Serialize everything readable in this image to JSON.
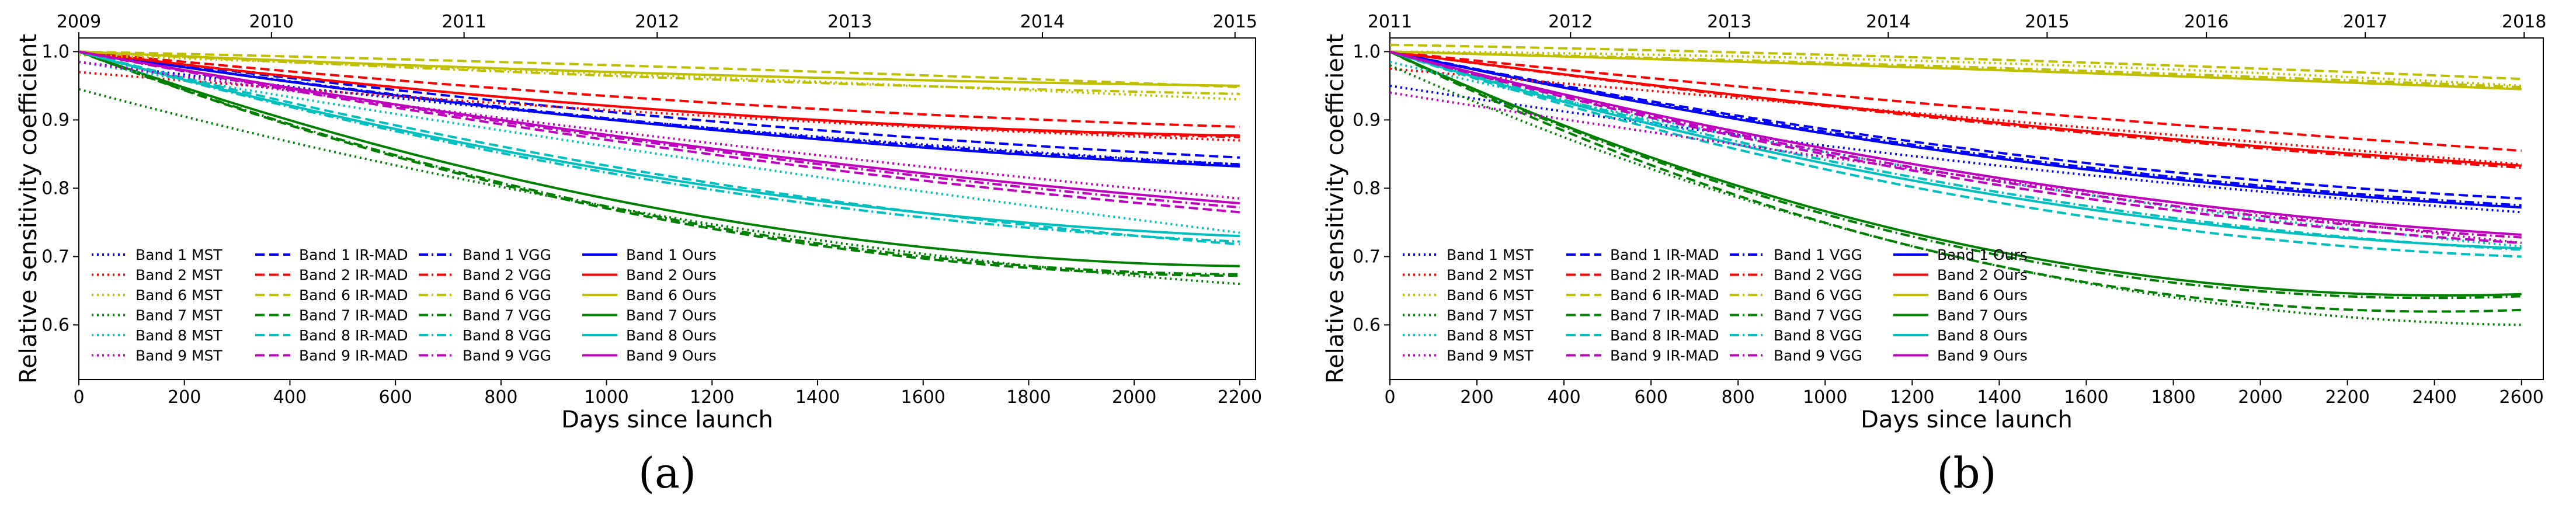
{
  "chart_data": [
    {
      "panel_label": "(a)",
      "panel_letter": "a",
      "type": "line",
      "xlabel": "Days since launch",
      "ylabel": "Relative sensitivity coefficient",
      "xlim": [
        0,
        2230
      ],
      "ylim": [
        0.52,
        1.02
      ],
      "xticks": [
        0,
        200,
        400,
        600,
        800,
        1000,
        1200,
        1400,
        1600,
        1800,
        2000,
        2200
      ],
      "yticks": [
        0.6,
        0.7,
        0.8,
        0.9,
        1.0
      ],
      "ytick_labels": [
        "0.6",
        "0.7",
        "0.8",
        "0.9",
        "1.0"
      ],
      "top_axis": {
        "labels": [
          "2009",
          "2010",
          "2011",
          "2012",
          "2013",
          "2014",
          "2015"
        ],
        "positions_days": [
          0,
          365,
          730,
          1096,
          1461,
          1826,
          2191
        ]
      },
      "legend_columns": [
        [
          "Band 1 MST",
          "Band 2 MST",
          "Band 6 MST",
          "Band 7 MST",
          "Band 8 MST",
          "Band 9 MST"
        ],
        [
          "Band 1 IR-MAD",
          "Band 2 IR-MAD",
          "Band 6 IR-MAD",
          "Band 7 IR-MAD",
          "Band 8 IR-MAD",
          "Band 9 IR-MAD"
        ],
        [
          "Band 1 VGG",
          "Band 2 VGG",
          "Band 6 VGG",
          "Band 7 VGG",
          "Band 8 VGG",
          "Band 9 VGG"
        ],
        [
          "Band 1 Ours",
          "Band 2 Ours",
          "Band 6 Ours",
          "Band 7 Ours",
          "Band 8 Ours",
          "Band 9 Ours"
        ]
      ],
      "legend_placement": "lower-left",
      "bands": [
        "Band 1",
        "Band 2",
        "Band 6",
        "Band 7",
        "Band 8",
        "Band 9"
      ],
      "band_colors": {
        "Band 1": "#0000ff",
        "Band 2": "#ff0000",
        "Band 6": "#bfbf00",
        "Band 7": "#008000",
        "Band 8": "#00bfbf",
        "Band 9": "#bf00bf"
      },
      "method_styles": {
        "MST": "dotted",
        "IR-MAD": "dashed",
        "VGG": "dashdot",
        "Ours": "solid"
      },
      "series": [
        {
          "name": "Band 1 MST",
          "band": "Band 1",
          "method": "MST",
          "x": [
            0,
            1100,
            2200
          ],
          "y": [
            0.985,
            0.895,
            0.835
          ]
        },
        {
          "name": "Band 1 IR-MAD",
          "band": "Band 1",
          "method": "IR-MAD",
          "x": [
            0,
            1100,
            2200
          ],
          "y": [
            1.0,
            0.905,
            0.845
          ]
        },
        {
          "name": "Band 1 VGG",
          "band": "Band 1",
          "method": "VGG",
          "x": [
            0,
            1100,
            2200
          ],
          "y": [
            1.0,
            0.895,
            0.835
          ]
        },
        {
          "name": "Band 1 Ours",
          "band": "Band 1",
          "method": "Ours",
          "x": [
            0,
            1100,
            2200
          ],
          "y": [
            1.0,
            0.893,
            0.832
          ]
        },
        {
          "name": "Band 2 MST",
          "band": "Band 2",
          "method": "MST",
          "x": [
            0,
            1100,
            2200
          ],
          "y": [
            0.97,
            0.91,
            0.87
          ]
        },
        {
          "name": "Band 2 IR-MAD",
          "band": "Band 2",
          "method": "IR-MAD",
          "x": [
            0,
            1100,
            2200
          ],
          "y": [
            1.0,
            0.93,
            0.89
          ]
        },
        {
          "name": "Band 2 VGG",
          "band": "Band 2",
          "method": "VGG",
          "x": [
            0,
            1100,
            2200
          ],
          "y": [
            1.0,
            0.915,
            0.875
          ]
        },
        {
          "name": "Band 2 Ours",
          "band": "Band 2",
          "method": "Ours",
          "x": [
            0,
            1100,
            2200
          ],
          "y": [
            1.0,
            0.915,
            0.877
          ]
        },
        {
          "name": "Band 6 MST",
          "band": "Band 6",
          "method": "MST",
          "x": [
            0,
            1100,
            2200
          ],
          "y": [
            0.995,
            0.965,
            0.93
          ]
        },
        {
          "name": "Band 6 IR-MAD",
          "band": "Band 6",
          "method": "IR-MAD",
          "x": [
            0,
            1100,
            2200
          ],
          "y": [
            1.0,
            0.978,
            0.948
          ]
        },
        {
          "name": "Band 6 VGG",
          "band": "Band 6",
          "method": "VGG",
          "x": [
            0,
            1100,
            2200
          ],
          "y": [
            1.0,
            0.962,
            0.938
          ]
        },
        {
          "name": "Band 6 Ours",
          "band": "Band 6",
          "method": "Ours",
          "x": [
            0,
            1100,
            2200
          ],
          "y": [
            1.0,
            0.968,
            0.95
          ]
        },
        {
          "name": "Band 7 MST",
          "band": "Band 7",
          "method": "MST",
          "x": [
            0,
            1100,
            2200
          ],
          "y": [
            0.945,
            0.76,
            0.66
          ]
        },
        {
          "name": "Band 7 IR-MAD",
          "band": "Band 7",
          "method": "IR-MAD",
          "x": [
            0,
            1100,
            2200
          ],
          "y": [
            1.0,
            0.755,
            0.672
          ]
        },
        {
          "name": "Band 7 VGG",
          "band": "Band 7",
          "method": "VGG",
          "x": [
            0,
            1100,
            2200
          ],
          "y": [
            1.0,
            0.758,
            0.674
          ]
        },
        {
          "name": "Band 7 Ours",
          "band": "Band 7",
          "method": "Ours",
          "x": [
            0,
            1100,
            2200
          ],
          "y": [
            1.0,
            0.77,
            0.686
          ]
        },
        {
          "name": "Band 8 MST",
          "band": "Band 8",
          "method": "MST",
          "x": [
            0,
            1100,
            2200
          ],
          "y": [
            0.985,
            0.85,
            0.735
          ]
        },
        {
          "name": "Band 8 IR-MAD",
          "band": "Band 8",
          "method": "IR-MAD",
          "x": [
            0,
            1100,
            2200
          ],
          "y": [
            1.0,
            0.82,
            0.718
          ]
        },
        {
          "name": "Band 8 VGG",
          "band": "Band 8",
          "method": "VGG",
          "x": [
            0,
            1100,
            2200
          ],
          "y": [
            1.0,
            0.81,
            0.722
          ]
        },
        {
          "name": "Band 8 Ours",
          "band": "Band 8",
          "method": "Ours",
          "x": [
            0,
            1100,
            2200
          ],
          "y": [
            1.0,
            0.815,
            0.73
          ]
        },
        {
          "name": "Band 9 MST",
          "band": "Band 9",
          "method": "MST",
          "x": [
            0,
            1100,
            2200
          ],
          "y": [
            0.985,
            0.875,
            0.785
          ]
        },
        {
          "name": "Band 9 IR-MAD",
          "band": "Band 9",
          "method": "IR-MAD",
          "x": [
            0,
            1100,
            2200
          ],
          "y": [
            1.0,
            0.86,
            0.765
          ]
        },
        {
          "name": "Band 9 VGG",
          "band": "Band 9",
          "method": "VGG",
          "x": [
            0,
            1100,
            2200
          ],
          "y": [
            1.0,
            0.865,
            0.772
          ]
        },
        {
          "name": "Band 9 Ours",
          "band": "Band 9",
          "method": "Ours",
          "x": [
            0,
            1100,
            2200
          ],
          "y": [
            1.0,
            0.868,
            0.778
          ]
        }
      ]
    },
    {
      "panel_label": "(b)",
      "panel_letter": "b",
      "type": "line",
      "xlabel": "Days since launch",
      "ylabel": "Relative sensitivity coefficient",
      "xlim": [
        0,
        2650
      ],
      "ylim": [
        0.52,
        1.02
      ],
      "xticks": [
        0,
        200,
        400,
        600,
        800,
        1000,
        1200,
        1400,
        1600,
        1800,
        2000,
        2200,
        2400,
        2600
      ],
      "yticks": [
        0.6,
        0.7,
        0.8,
        0.9,
        1.0
      ],
      "ytick_labels": [
        "0.6",
        "0.7",
        "0.8",
        "0.9",
        "1.0"
      ],
      "top_axis": {
        "labels": [
          "2011",
          "2012",
          "2013",
          "2014",
          "2015",
          "2016",
          "2017",
          "2018"
        ],
        "positions_days": [
          0,
          415,
          780,
          1145,
          1510,
          1876,
          2241,
          2606
        ]
      },
      "legend_columns": [
        [
          "Band 1 MST",
          "Band 2 MST",
          "Band 6 MST",
          "Band 7 MST",
          "Band 8 MST",
          "Band 9 MST"
        ],
        [
          "Band 1 IR-MAD",
          "Band 2 IR-MAD",
          "Band 6 IR-MAD",
          "Band 7 IR-MAD",
          "Band 8 IR-MAD",
          "Band 9 IR-MAD"
        ],
        [
          "Band 1 VGG",
          "Band 2 VGG",
          "Band 6 VGG",
          "Band 7 VGG",
          "Band 8 VGG",
          "Band 9 VGG"
        ],
        [
          "Band 1 Ours",
          "Band 2 Ours",
          "Band 6 Ours",
          "Band 7 Ours",
          "Band 8 Ours",
          "Band 9 Ours"
        ]
      ],
      "legend_placement": "lower-left",
      "bands": [
        "Band 1",
        "Band 2",
        "Band 6",
        "Band 7",
        "Band 8",
        "Band 9"
      ],
      "band_colors": {
        "Band 1": "#0000ff",
        "Band 2": "#ff0000",
        "Band 6": "#bfbf00",
        "Band 7": "#008000",
        "Band 8": "#00bfbf",
        "Band 9": "#bf00bf"
      },
      "method_styles": {
        "MST": "dotted",
        "IR-MAD": "dashed",
        "VGG": "dashdot",
        "Ours": "solid"
      },
      "series": [
        {
          "name": "Band 1 MST",
          "band": "Band 1",
          "method": "MST",
          "x": [
            0,
            1300,
            2600
          ],
          "y": [
            0.95,
            0.84,
            0.765
          ]
        },
        {
          "name": "Band 1 IR-MAD",
          "band": "Band 1",
          "method": "IR-MAD",
          "x": [
            0,
            1300,
            2600
          ],
          "y": [
            1.0,
            0.86,
            0.785
          ]
        },
        {
          "name": "Band 1 VGG",
          "band": "Band 1",
          "method": "VGG",
          "x": [
            0,
            1300,
            2600
          ],
          "y": [
            1.0,
            0.855,
            0.775
          ]
        },
        {
          "name": "Band 1 Ours",
          "band": "Band 1",
          "method": "Ours",
          "x": [
            0,
            1300,
            2600
          ],
          "y": [
            1.0,
            0.852,
            0.772
          ]
        },
        {
          "name": "Band 2 MST",
          "band": "Band 2",
          "method": "MST",
          "x": [
            0,
            1300,
            2600
          ],
          "y": [
            0.975,
            0.905,
            0.835
          ]
        },
        {
          "name": "Band 2 IR-MAD",
          "band": "Band 2",
          "method": "IR-MAD",
          "x": [
            0,
            1300,
            2600
          ],
          "y": [
            1.0,
            0.92,
            0.855
          ]
        },
        {
          "name": "Band 2 VGG",
          "band": "Band 2",
          "method": "VGG",
          "x": [
            0,
            1300,
            2600
          ],
          "y": [
            1.0,
            0.9,
            0.83
          ]
        },
        {
          "name": "Band 2 Ours",
          "band": "Band 2",
          "method": "Ours",
          "x": [
            0,
            1300,
            2600
          ],
          "y": [
            1.0,
            0.902,
            0.833
          ]
        },
        {
          "name": "Band 6 MST",
          "band": "Band 6",
          "method": "MST",
          "x": [
            0,
            1300,
            2600
          ],
          "y": [
            1.0,
            0.985,
            0.95
          ]
        },
        {
          "name": "Band 6 IR-MAD",
          "band": "Band 6",
          "method": "IR-MAD",
          "x": [
            0,
            1300,
            2600
          ],
          "y": [
            1.01,
            0.99,
            0.96
          ]
        },
        {
          "name": "Band 6 VGG",
          "band": "Band 6",
          "method": "VGG",
          "x": [
            0,
            1300,
            2600
          ],
          "y": [
            1.0,
            0.978,
            0.948
          ]
        },
        {
          "name": "Band 6 Ours",
          "band": "Band 6",
          "method": "Ours",
          "x": [
            0,
            1300,
            2600
          ],
          "y": [
            1.0,
            0.975,
            0.945
          ]
        },
        {
          "name": "Band 7 MST",
          "band": "Band 7",
          "method": "MST",
          "x": [
            0,
            1300,
            2600
          ],
          "y": [
            0.98,
            0.7,
            0.6
          ]
        },
        {
          "name": "Band 7 IR-MAD",
          "band": "Band 7",
          "method": "IR-MAD",
          "x": [
            0,
            1300,
            2600
          ],
          "y": [
            1.0,
            0.7,
            0.622
          ]
        },
        {
          "name": "Band 7 VGG",
          "band": "Band 7",
          "method": "VGG",
          "x": [
            0,
            1300,
            2600
          ],
          "y": [
            1.0,
            0.715,
            0.642
          ]
        },
        {
          "name": "Band 7 Ours",
          "band": "Band 7",
          "method": "Ours",
          "x": [
            0,
            1300,
            2600
          ],
          "y": [
            1.0,
            0.72,
            0.645
          ]
        },
        {
          "name": "Band 8 MST",
          "band": "Band 8",
          "method": "MST",
          "x": [
            0,
            1300,
            2600
          ],
          "y": [
            0.985,
            0.82,
            0.715
          ]
        },
        {
          "name": "Band 8 IR-MAD",
          "band": "Band 8",
          "method": "IR-MAD",
          "x": [
            0,
            1300,
            2600
          ],
          "y": [
            1.0,
            0.79,
            0.7
          ]
        },
        {
          "name": "Band 8 VGG",
          "band": "Band 8",
          "method": "VGG",
          "x": [
            0,
            1300,
            2600
          ],
          "y": [
            1.0,
            0.805,
            0.71
          ]
        },
        {
          "name": "Band 8 Ours",
          "band": "Band 8",
          "method": "Ours",
          "x": [
            0,
            1300,
            2600
          ],
          "y": [
            1.0,
            0.8,
            0.712
          ]
        },
        {
          "name": "Band 9 MST",
          "band": "Band 9",
          "method": "MST",
          "x": [
            0,
            1300,
            2600
          ],
          "y": [
            0.94,
            0.82,
            0.72
          ]
        },
        {
          "name": "Band 9 IR-MAD",
          "band": "Band 9",
          "method": "IR-MAD",
          "x": [
            0,
            1300,
            2600
          ],
          "y": [
            1.0,
            0.815,
            0.72
          ]
        },
        {
          "name": "Band 9 VGG",
          "band": "Band 9",
          "method": "VGG",
          "x": [
            0,
            1300,
            2600
          ],
          "y": [
            1.0,
            0.82,
            0.728
          ]
        },
        {
          "name": "Band 9 Ours",
          "band": "Band 9",
          "method": "Ours",
          "x": [
            0,
            1300,
            2600
          ],
          "y": [
            1.0,
            0.825,
            0.732
          ]
        }
      ]
    }
  ]
}
